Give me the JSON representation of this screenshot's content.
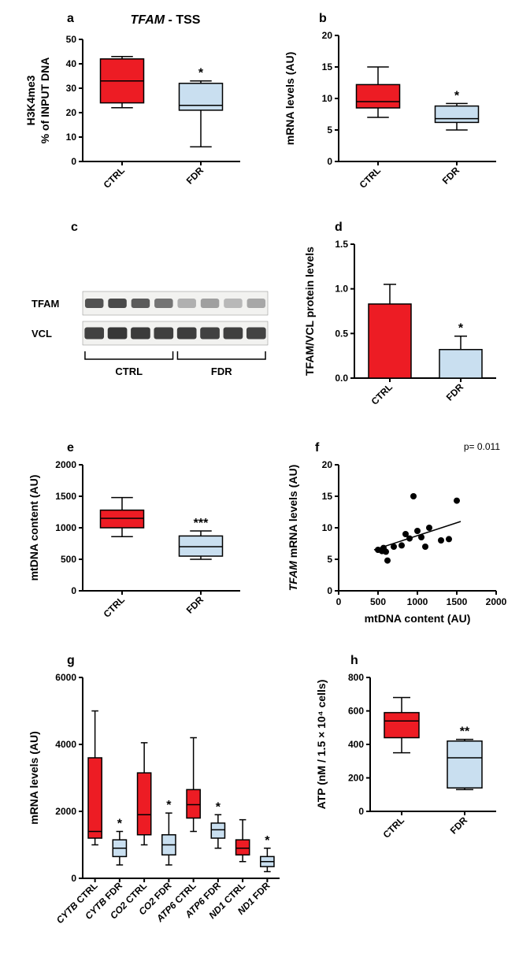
{
  "colors": {
    "ctrl": "#ed1c24",
    "fdr": "#c9dff0",
    "axis": "#000000",
    "bg": "#ffffff"
  },
  "typography": {
    "panel_letter_fontsize": 16,
    "axis_label_fontsize": 14,
    "tick_fontsize": 12,
    "title_fontsize": 16
  },
  "panel_a": {
    "letter": "a",
    "title": "TFAM - TSS",
    "ylabel_line1": "H3K4me3",
    "ylabel_line2": "% of INPUT DNA",
    "ylim": [
      0,
      50
    ],
    "ytick_step": 10,
    "categories": [
      "CTRL",
      "FDR"
    ],
    "boxes": [
      {
        "color": "#ed1c24",
        "q1": 24,
        "median": 33,
        "q3": 42,
        "whisker_low": 22,
        "whisker_high": 43,
        "sig": ""
      },
      {
        "color": "#c9dff0",
        "q1": 21,
        "median": 23,
        "q3": 32,
        "whisker_low": 6,
        "whisker_high": 33,
        "sig": "*"
      }
    ]
  },
  "panel_b": {
    "letter": "b",
    "ylabel": "mRNA levels (AU)",
    "ylim": [
      0,
      20
    ],
    "ytick_step": 5,
    "categories": [
      "CTRL",
      "FDR"
    ],
    "boxes": [
      {
        "color": "#ed1c24",
        "q1": 8.5,
        "median": 9.5,
        "q3": 12.2,
        "whisker_low": 7,
        "whisker_high": 15,
        "sig": ""
      },
      {
        "color": "#c9dff0",
        "q1": 6.2,
        "median": 6.8,
        "q3": 8.8,
        "whisker_low": 5,
        "whisker_high": 9.2,
        "sig": "*"
      }
    ]
  },
  "panel_c": {
    "letter": "c",
    "row_labels": [
      "TFAM",
      "VCL"
    ],
    "group_labels": [
      "CTRL",
      "FDR"
    ],
    "lanes_per_group": 4,
    "tfam_intensities": [
      0.9,
      0.95,
      0.85,
      0.7,
      0.35,
      0.45,
      0.3,
      0.4
    ],
    "vcl_intensities": [
      0.85,
      0.9,
      0.88,
      0.86,
      0.87,
      0.85,
      0.86,
      0.84
    ]
  },
  "panel_d": {
    "letter": "d",
    "ylabel": "TFAM/VCL protein levels",
    "ylim": [
      0,
      1.5
    ],
    "ytick_step": 0.5,
    "categories": [
      "CTRL",
      "FDR"
    ],
    "bars": [
      {
        "color": "#ed1c24",
        "mean": 0.83,
        "err": 0.22,
        "sig": ""
      },
      {
        "color": "#c9dff0",
        "mean": 0.32,
        "err": 0.15,
        "sig": "*"
      }
    ]
  },
  "panel_e": {
    "letter": "e",
    "ylabel": "mtDNA content (AU)",
    "ylim": [
      0,
      2000
    ],
    "ytick_step": 500,
    "categories": [
      "CTRL",
      "FDR"
    ],
    "boxes": [
      {
        "color": "#ed1c24",
        "q1": 1000,
        "median": 1150,
        "q3": 1280,
        "whisker_low": 860,
        "whisker_high": 1480,
        "sig": ""
      },
      {
        "color": "#c9dff0",
        "q1": 550,
        "median": 700,
        "q3": 870,
        "whisker_low": 500,
        "whisker_high": 950,
        "sig": "***"
      }
    ]
  },
  "panel_f": {
    "letter": "f",
    "pvalue_text": "p= 0.011",
    "ylabel": "TFAM mRNA levels (AU)",
    "xlabel": "mtDNA content (AU)",
    "ylim": [
      0,
      20
    ],
    "ytick_step": 5,
    "xlim": [
      0,
      2000
    ],
    "xtick_step": 500,
    "points": [
      {
        "x": 500,
        "y": 6.5
      },
      {
        "x": 550,
        "y": 6.3
      },
      {
        "x": 570,
        "y": 6.8
      },
      {
        "x": 600,
        "y": 6.2
      },
      {
        "x": 620,
        "y": 4.8
      },
      {
        "x": 700,
        "y": 7.0
      },
      {
        "x": 800,
        "y": 7.2
      },
      {
        "x": 850,
        "y": 9.0
      },
      {
        "x": 900,
        "y": 8.3
      },
      {
        "x": 950,
        "y": 15.0
      },
      {
        "x": 1000,
        "y": 9.5
      },
      {
        "x": 1050,
        "y": 8.5
      },
      {
        "x": 1100,
        "y": 7.0
      },
      {
        "x": 1150,
        "y": 10.0
      },
      {
        "x": 1300,
        "y": 8.0
      },
      {
        "x": 1400,
        "y": 8.2
      },
      {
        "x": 1500,
        "y": 14.3
      }
    ],
    "line": {
      "x1": 450,
      "y1": 6.5,
      "x2": 1550,
      "y2": 11.0
    },
    "marker_color": "#000000",
    "marker_size": 4
  },
  "panel_g": {
    "letter": "g",
    "ylabel": "mRNA levels (AU)",
    "ylim": [
      0,
      6000
    ],
    "ytick_step": 2000,
    "categories": [
      "CYTB CTRL",
      "CYTB FDR",
      "CO2 CTRL",
      "CO2 FDR",
      "ATP6 CTRL",
      "ATP6 FDR",
      "ND1 CTRL",
      "ND1 FDR"
    ],
    "boxes": [
      {
        "color": "#ed1c24",
        "q1": 1200,
        "median": 1400,
        "q3": 3600,
        "whisker_low": 1000,
        "whisker_high": 5000,
        "sig": ""
      },
      {
        "color": "#c9dff0",
        "q1": 650,
        "median": 900,
        "q3": 1150,
        "whisker_low": 400,
        "whisker_high": 1400,
        "sig": "*"
      },
      {
        "color": "#ed1c24",
        "q1": 1300,
        "median": 1900,
        "q3": 3150,
        "whisker_low": 1000,
        "whisker_high": 4050,
        "sig": ""
      },
      {
        "color": "#c9dff0",
        "q1": 700,
        "median": 1000,
        "q3": 1300,
        "whisker_low": 400,
        "whisker_high": 1950,
        "sig": "*"
      },
      {
        "color": "#ed1c24",
        "q1": 1800,
        "median": 2200,
        "q3": 2650,
        "whisker_low": 1400,
        "whisker_high": 4200,
        "sig": ""
      },
      {
        "color": "#c9dff0",
        "q1": 1200,
        "median": 1450,
        "q3": 1650,
        "whisker_low": 900,
        "whisker_high": 1900,
        "sig": "*"
      },
      {
        "color": "#ed1c24",
        "q1": 700,
        "median": 900,
        "q3": 1150,
        "whisker_low": 500,
        "whisker_high": 1750,
        "sig": ""
      },
      {
        "color": "#c9dff0",
        "q1": 350,
        "median": 500,
        "q3": 650,
        "whisker_low": 200,
        "whisker_high": 900,
        "sig": "*"
      }
    ]
  },
  "panel_h": {
    "letter": "h",
    "ylabel": "ATP (nM / 1.5 × 10⁴ cells)",
    "ylim": [
      0,
      800
    ],
    "ytick_step": 200,
    "categories": [
      "CTRL",
      "FDR"
    ],
    "boxes": [
      {
        "color": "#ed1c24",
        "q1": 440,
        "median": 540,
        "q3": 590,
        "whisker_low": 350,
        "whisker_high": 680,
        "sig": ""
      },
      {
        "color": "#c9dff0",
        "q1": 140,
        "median": 320,
        "q3": 420,
        "whisker_low": 130,
        "whisker_high": 430,
        "sig": "**"
      }
    ]
  }
}
